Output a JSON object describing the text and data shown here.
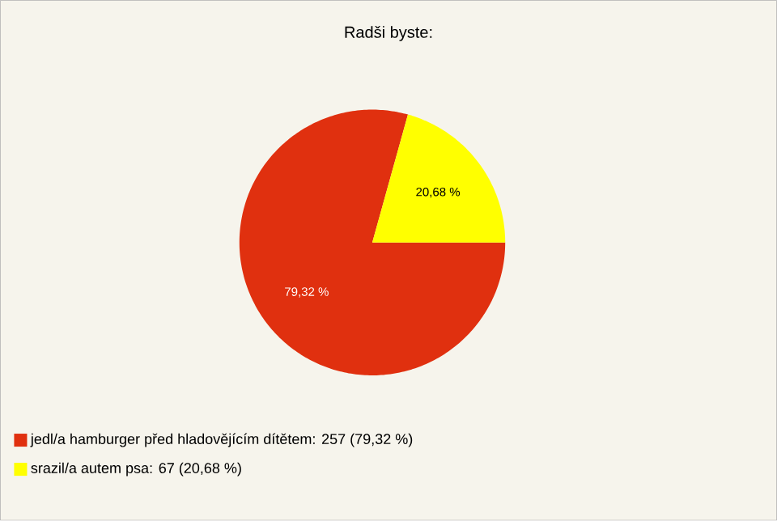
{
  "chart_data": {
    "type": "pie",
    "title": "Radši byste:",
    "categories": [
      "jedl/a hamburger před hladovějícím dítětem: 257 (79,32 %)",
      "srazil/a autem psa: 67 (20,68 %)"
    ],
    "values": [
      79.32,
      20.68
    ],
    "colors": [
      "#e0300f",
      "#ffff00"
    ],
    "value_labels": [
      "79,32 %",
      "20,68 %"
    ],
    "legend": "bottom left"
  }
}
